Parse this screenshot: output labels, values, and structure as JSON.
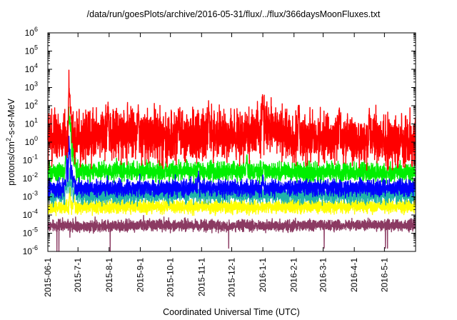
{
  "chart_data": {
    "type": "line",
    "title": "/data/run/goesPlots/archive/2016-05-31/flux/../flux/366daysMoonFluxes.txt",
    "xlabel": "Coordinated Universal Time (UTC)",
    "ylabel": {
      "base": "protons/cm",
      "sup": "2",
      "rest": "-s-sr-MeV"
    },
    "y_scale": "log",
    "ylim": [
      1e-06,
      1000000.0
    ],
    "xlim_days": [
      0,
      366
    ],
    "y_tick_exponents": [
      -6,
      -5,
      -4,
      -3,
      -2,
      -1,
      0,
      1,
      2,
      3,
      4,
      5,
      6
    ],
    "y_tick_base": "10",
    "x_ticks": [
      {
        "label": "2015-06-1",
        "day": 0
      },
      {
        "label": "2015-7-1",
        "day": 30
      },
      {
        "label": "2015-8-1",
        "day": 61
      },
      {
        "label": "2015-9-1",
        "day": 92
      },
      {
        "label": "2015-10-1",
        "day": 122
      },
      {
        "label": "2015-11-1",
        "day": 153
      },
      {
        "label": "2015-12-1",
        "day": 183
      },
      {
        "label": "2016-1-1",
        "day": 214
      },
      {
        "label": "2016-2-1",
        "day": 245
      },
      {
        "label": "2016-3-1",
        "day": 274
      },
      {
        "label": "2016-4-1",
        "day": 305
      },
      {
        "label": "2016-5-1",
        "day": 335
      }
    ],
    "grid": false,
    "legend": "none",
    "series": [
      {
        "color": "#8b3a62",
        "base": [
          [
            0,
            2.5e-05
          ],
          [
            60,
            2.5e-05
          ],
          [
            120,
            2.8e-05
          ],
          [
            200,
            2.5e-05
          ],
          [
            280,
            2.7e-05
          ],
          [
            366,
            2.8e-05
          ]
        ],
        "noise_decades": 0.15,
        "dips": [
          [
            9,
            1e-06
          ],
          [
            11,
            1e-06
          ],
          [
            22,
            6e-06
          ],
          [
            32,
            1.5e-05
          ],
          [
            62,
            1e-06
          ],
          [
            180,
            1.5e-06
          ],
          [
            275,
            1.5e-06
          ],
          [
            336,
            1.5e-06
          ],
          [
            338,
            1.5e-06
          ]
        ],
        "spikes": []
      },
      {
        "color": "#ffff00",
        "base": [
          [
            0,
            0.00025
          ],
          [
            60,
            0.00028
          ],
          [
            120,
            0.0003
          ],
          [
            200,
            0.00028
          ],
          [
            280,
            0.0003
          ],
          [
            366,
            0.0003
          ]
        ],
        "noise_decades": 0.18,
        "dips": [],
        "spikes": [
          [
            22,
            0.005
          ],
          [
            26,
            0.003
          ]
        ]
      },
      {
        "color": "#20b2aa",
        "base": [
          [
            0,
            0.001
          ],
          [
            60,
            0.0012
          ],
          [
            120,
            0.0013
          ],
          [
            200,
            0.0013
          ],
          [
            280,
            0.0012
          ],
          [
            366,
            0.0013
          ]
        ],
        "noise_decades": 0.22,
        "dips": [],
        "spikes": [
          [
            18,
            0.01
          ],
          [
            20,
            0.03
          ],
          [
            22,
            0.06
          ],
          [
            24,
            0.02
          ],
          [
            27,
            0.008
          ]
        ]
      },
      {
        "color": "#00ee00",
        "base": [
          [
            0,
            0.02
          ],
          [
            60,
            0.025
          ],
          [
            120,
            0.025
          ],
          [
            200,
            0.025
          ],
          [
            280,
            0.022
          ],
          [
            366,
            0.02
          ]
        ],
        "noise_decades": 0.25,
        "dips": [],
        "spikes": [
          [
            18,
            1
          ],
          [
            20,
            10
          ],
          [
            21,
            300
          ],
          [
            22,
            80
          ],
          [
            23,
            15
          ],
          [
            25,
            3
          ],
          [
            27,
            0.3
          ],
          [
            150,
            0.08
          ],
          [
            198,
            0.3
          ],
          [
            215,
            0.06
          ]
        ]
      },
      {
        "color": "#0000ff",
        "base": [
          [
            0,
            0.0025
          ],
          [
            60,
            0.003
          ],
          [
            120,
            0.003
          ],
          [
            200,
            0.003
          ],
          [
            280,
            0.003
          ],
          [
            366,
            0.0032
          ]
        ],
        "noise_decades": 0.22,
        "dips": [],
        "spikes": [
          [
            17,
            0.01
          ],
          [
            19,
            0.5
          ],
          [
            21,
            3
          ],
          [
            22,
            1
          ],
          [
            24,
            0.1
          ],
          [
            26,
            0.02
          ],
          [
            150,
            0.03
          ],
          [
            214,
            0.02
          ]
        ]
      },
      {
        "color": "#ff0000",
        "base": [
          [
            0,
            1.5
          ],
          [
            40,
            2
          ],
          [
            80,
            3
          ],
          [
            120,
            2
          ],
          [
            160,
            2.5
          ],
          [
            200,
            2
          ],
          [
            214,
            8
          ],
          [
            240,
            2
          ],
          [
            280,
            1.5
          ],
          [
            320,
            1.2
          ],
          [
            366,
            1
          ]
        ],
        "noise_decades": 0.65,
        "dips": [
          [
            20,
            0.3
          ],
          [
            85,
            0.4
          ],
          [
            215,
            0.2
          ]
        ],
        "spikes": [
          [
            21,
            10000
          ],
          [
            22,
            1000
          ],
          [
            23,
            100
          ],
          [
            60,
            200
          ],
          [
            90,
            150
          ],
          [
            130,
            100
          ],
          [
            160,
            300
          ],
          [
            214,
            400
          ],
          [
            250,
            200
          ],
          [
            290,
            150
          ],
          [
            320,
            100
          ]
        ]
      }
    ]
  }
}
